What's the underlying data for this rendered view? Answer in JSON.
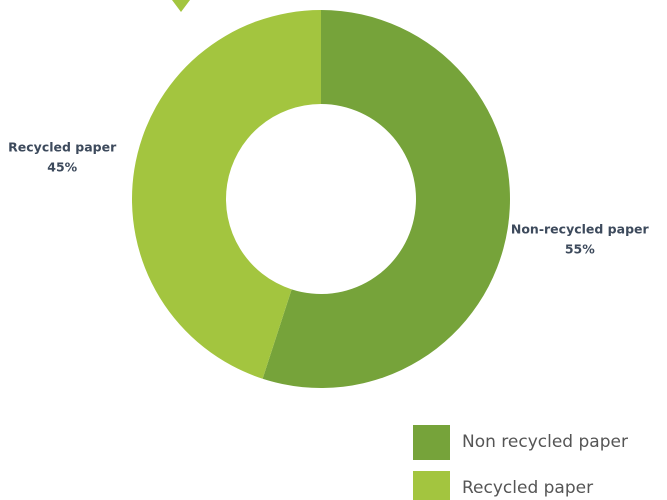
{
  "chart_data": {
    "type": "donut",
    "categories": [
      "Non recycled paper",
      "Recycled paper"
    ],
    "labels": [
      "Non-recycled paper",
      "Recycled paper"
    ],
    "values": [
      55,
      45
    ],
    "value_labels": [
      "55%",
      "45%"
    ],
    "colors": [
      "#76a33a",
      "#a3c53f"
    ],
    "legend": "bottom-right"
  }
}
